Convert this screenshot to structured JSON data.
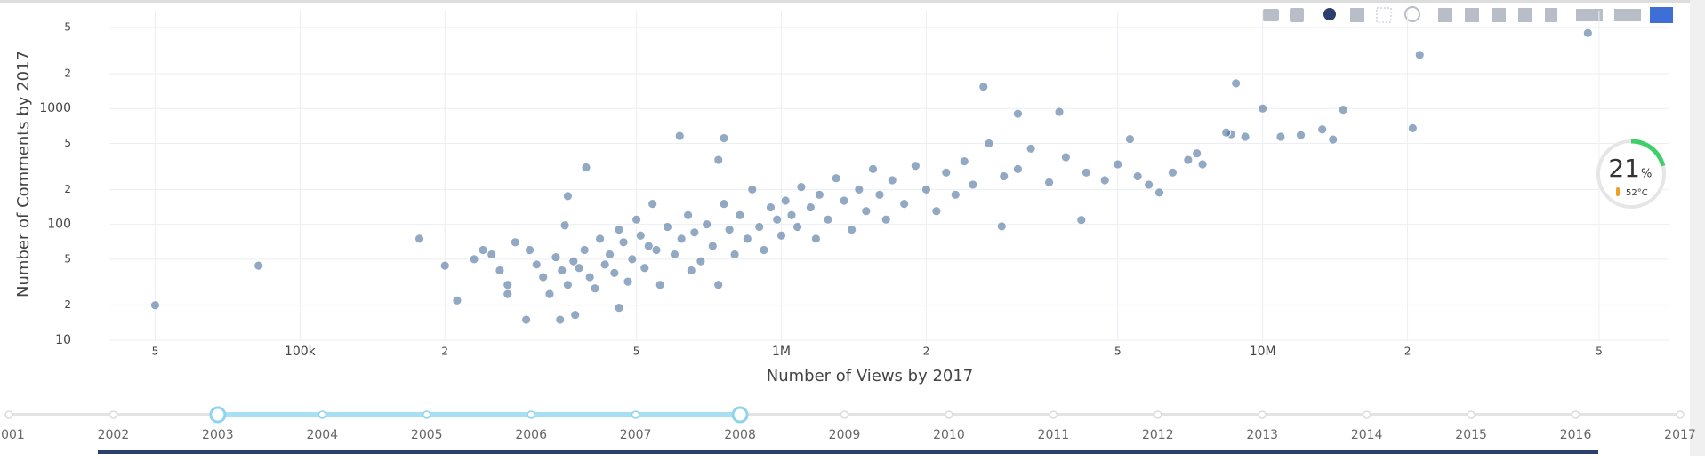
{
  "chart_data": {
    "type": "scatter",
    "x_label": "Number of Views by 2017",
    "y_label": "Number of Comments by 2017",
    "log_x": true,
    "log_y": true,
    "grid": true,
    "color": "#4a6f9c",
    "xlim": [
      40000,
      70000000
    ],
    "ylim": [
      10,
      7000
    ],
    "xticks": [
      {
        "value": 50000,
        "label": "5"
      },
      {
        "value": 100000,
        "label": "100k"
      },
      {
        "value": 200000,
        "label": "2"
      },
      {
        "value": 500000,
        "label": "5"
      },
      {
        "value": 1000000,
        "label": "1M"
      },
      {
        "value": 2000000,
        "label": "2"
      },
      {
        "value": 5000000,
        "label": "5"
      },
      {
        "value": 10000000,
        "label": "10M"
      },
      {
        "value": 20000000,
        "label": "2"
      },
      {
        "value": 50000000,
        "label": "5"
      }
    ],
    "yticks": [
      10,
      {
        "value": 20,
        "label": "2"
      },
      {
        "value": 50,
        "label": "5"
      },
      100,
      {
        "value": 200,
        "label": "2"
      },
      {
        "value": 500,
        "label": "5"
      },
      1000,
      {
        "value": 2000,
        "label": "2"
      },
      {
        "value": 5000,
        "label": "5"
      }
    ],
    "x": [
      50000,
      82000,
      177000,
      200000,
      212000,
      47400000,
      21200000,
      20500000,
      14700000,
      10000000,
      8800000,
      8600000,
      9200000,
      8400000,
      10900000,
      12000000,
      13300000,
      14000000,
      3780000,
      2630000,
      3100000,
      4200000,
      2870000,
      6100000,
      5300000,
      7300000,
      7000000,
      5500000,
      615000,
      760000,
      740000,
      393000,
      460000,
      295000,
      347000,
      373000,
      360000,
      355000,
      300000,
      310000,
      320000,
      330000,
      340000,
      350000,
      360000,
      370000,
      380000,
      390000,
      400000,
      410000,
      420000,
      430000,
      440000,
      450000,
      460000,
      470000,
      480000,
      490000,
      500000,
      510000,
      520000,
      530000,
      540000,
      550000,
      560000,
      580000,
      600000,
      620000,
      640000,
      650000,
      660000,
      680000,
      700000,
      720000,
      740000,
      760000,
      780000,
      800000,
      820000,
      850000,
      870000,
      900000,
      920000,
      950000,
      980000,
      1000000,
      1020000,
      1050000,
      1080000,
      1100000,
      1150000,
      1180000,
      1200000,
      1250000,
      1300000,
      1350000,
      1400000,
      1450000,
      1500000,
      1550000,
      1600000,
      1650000,
      1700000,
      1800000,
      1900000,
      2000000,
      2100000,
      2200000,
      2300000,
      2400000,
      2500000,
      2700000,
      2900000,
      3100000,
      3300000,
      3600000,
      3900000,
      4300000,
      4700000,
      5000000,
      5800000,
      6500000,
      7500000,
      250000,
      260000,
      270000,
      280000,
      230000,
      240000,
      270000
    ],
    "y": [
      20,
      44,
      75,
      44,
      22,
      4480,
      2900,
      676,
      975,
      1000,
      1650,
      600,
      570,
      620,
      570,
      590,
      660,
      540,
      935,
      1540,
      900,
      109,
      96,
      188,
      545,
      410,
      360,
      260,
      580,
      555,
      360,
      310,
      19,
      15,
      15,
      16.5,
      175,
      98,
      60,
      45,
      35,
      25,
      52,
      40,
      30,
      48,
      42,
      60,
      35,
      28,
      75,
      45,
      55,
      38,
      90,
      70,
      32,
      50,
      110,
      80,
      42,
      65,
      150,
      60,
      30,
      95,
      55,
      75,
      120,
      40,
      85,
      48,
      100,
      65,
      30,
      150,
      90,
      55,
      120,
      75,
      200,
      95,
      60,
      140,
      110,
      80,
      160,
      120,
      95,
      210,
      140,
      75,
      180,
      110,
      250,
      160,
      90,
      200,
      130,
      300,
      180,
      110,
      240,
      150,
      320,
      200,
      130,
      280,
      180,
      350,
      220,
      500,
      260,
      300,
      450,
      230,
      380,
      280,
      240,
      330,
      220,
      280,
      330,
      55,
      40,
      30,
      70,
      50,
      60,
      25
    ]
  },
  "slider": {
    "years": [
      "2001",
      "2002",
      "2003",
      "2004",
      "2005",
      "2006",
      "2007",
      "2008",
      "2009",
      "2010",
      "2011",
      "2012",
      "2013",
      "2014",
      "2015",
      "2016",
      "2017"
    ],
    "selected_range": [
      2003,
      2008
    ]
  },
  "gauge": {
    "value": 21,
    "unit": "%",
    "temperature": "52°C"
  }
}
